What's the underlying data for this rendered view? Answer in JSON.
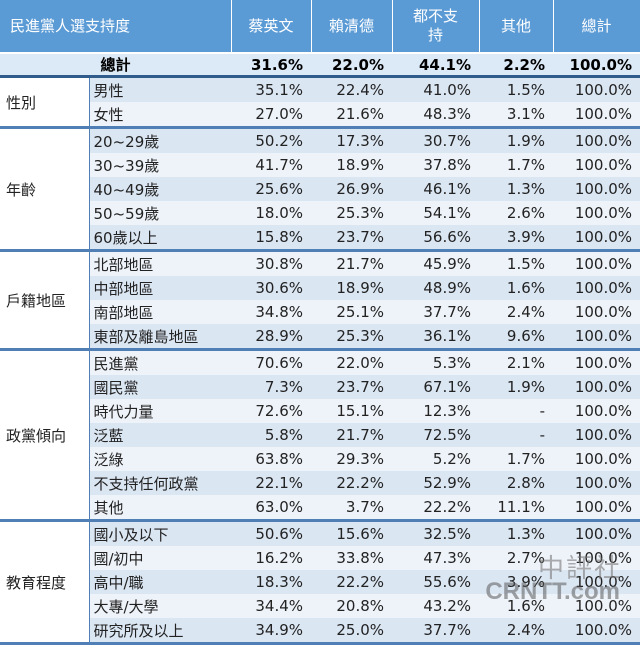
{
  "chart_data": {
    "type": "table",
    "title": "民進黨人選支持度",
    "columns": [
      "蔡英文",
      "賴清德",
      "都不支持",
      "其他",
      "總計"
    ],
    "total": {
      "label": "總計",
      "values": [
        "31.6%",
        "22.0%",
        "44.1%",
        "2.2%",
        "100.0%"
      ]
    },
    "groups": [
      {
        "category": "性別",
        "rows": [
          {
            "label": "男性",
            "values": [
              "35.1%",
              "22.4%",
              "41.0%",
              "1.5%",
              "100.0%"
            ],
            "highlight": [
              0
            ]
          },
          {
            "label": "女性",
            "values": [
              "27.0%",
              "21.6%",
              "48.3%",
              "3.1%",
              "100.0%"
            ],
            "highlight": []
          }
        ]
      },
      {
        "category": "年齡",
        "rows": [
          {
            "label": "20~29歲",
            "values": [
              "50.2%",
              "17.3%",
              "30.7%",
              "1.9%",
              "100.0%"
            ],
            "highlight": [
              0
            ]
          },
          {
            "label": "30~39歲",
            "values": [
              "41.7%",
              "18.9%",
              "37.8%",
              "1.7%",
              "100.0%"
            ],
            "highlight": [
              0
            ]
          },
          {
            "label": "40~49歲",
            "values": [
              "25.6%",
              "26.9%",
              "46.1%",
              "1.3%",
              "100.0%"
            ],
            "highlight": []
          },
          {
            "label": "50~59歲",
            "values": [
              "18.0%",
              "25.3%",
              "54.1%",
              "2.6%",
              "100.0%"
            ],
            "highlight": [
              1
            ]
          },
          {
            "label": "60歲以上",
            "values": [
              "15.8%",
              "23.7%",
              "56.6%",
              "3.9%",
              "100.0%"
            ],
            "highlight": [
              1
            ]
          }
        ]
      },
      {
        "category": "戶籍地區",
        "rows": [
          {
            "label": "北部地區",
            "values": [
              "30.8%",
              "21.7%",
              "45.9%",
              "1.5%",
              "100.0%"
            ],
            "highlight": [
              0
            ]
          },
          {
            "label": "中部地區",
            "values": [
              "30.6%",
              "18.9%",
              "48.9%",
              "1.6%",
              "100.0%"
            ],
            "highlight": [
              0
            ]
          },
          {
            "label": "南部地區",
            "values": [
              "34.8%",
              "25.1%",
              "37.7%",
              "2.4%",
              "100.0%"
            ],
            "highlight": [
              0
            ]
          },
          {
            "label": "東部及離島地區",
            "values": [
              "28.9%",
              "25.3%",
              "36.1%",
              "9.6%",
              "100.0%"
            ],
            "highlight": []
          }
        ]
      },
      {
        "category": "政黨傾向",
        "rows": [
          {
            "label": "民進黨",
            "values": [
              "70.6%",
              "22.0%",
              "5.3%",
              "2.1%",
              "100.0%"
            ],
            "highlight": [
              0
            ]
          },
          {
            "label": "國民黨",
            "values": [
              "7.3%",
              "23.7%",
              "67.1%",
              "1.9%",
              "100.0%"
            ],
            "highlight": []
          },
          {
            "label": "時代力量",
            "values": [
              "72.6%",
              "15.1%",
              "12.3%",
              "-",
              "100.0%"
            ],
            "highlight": []
          },
          {
            "label": "泛藍",
            "values": [
              "5.8%",
              "21.7%",
              "72.5%",
              "-",
              "100.0%"
            ],
            "highlight": []
          },
          {
            "label": "泛綠",
            "values": [
              "63.8%",
              "29.3%",
              "5.2%",
              "1.7%",
              "100.0%"
            ],
            "highlight": [
              0
            ]
          },
          {
            "label": "不支持任何政黨",
            "values": [
              "22.1%",
              "22.2%",
              "52.9%",
              "2.8%",
              "100.0%"
            ],
            "highlight": []
          },
          {
            "label": "其他",
            "values": [
              "63.0%",
              "3.7%",
              "22.2%",
              "11.1%",
              "100.0%"
            ],
            "highlight": []
          }
        ]
      },
      {
        "category": "教育程度",
        "rows": [
          {
            "label": "國小及以下",
            "values": [
              "50.6%",
              "15.6%",
              "32.5%",
              "1.3%",
              "100.0%"
            ],
            "highlight": [
              0
            ]
          },
          {
            "label": "國/初中",
            "values": [
              "16.2%",
              "33.8%",
              "47.3%",
              "2.7%",
              "100.0%"
            ],
            "highlight": [
              1
            ]
          },
          {
            "label": "高中/職",
            "values": [
              "18.3%",
              "22.2%",
              "55.6%",
              "3.9%",
              "100.0%"
            ],
            "highlight": []
          },
          {
            "label": "大專/大學",
            "values": [
              "34.4%",
              "20.8%",
              "43.2%",
              "1.6%",
              "100.0%"
            ],
            "highlight": [
              0
            ]
          },
          {
            "label": "研究所及以上",
            "values": [
              "34.9%",
              "25.0%",
              "37.7%",
              "2.4%",
              "100.0%"
            ],
            "highlight": [
              0
            ]
          }
        ]
      }
    ]
  },
  "watermark": {
    "chinese": "中評社",
    "english": "CRNTT.com"
  },
  "colors": {
    "header": "#5b9bd5",
    "highlight": "#e02020",
    "row_odd": "#dbe6f3",
    "row_even": "#eef3f9"
  }
}
